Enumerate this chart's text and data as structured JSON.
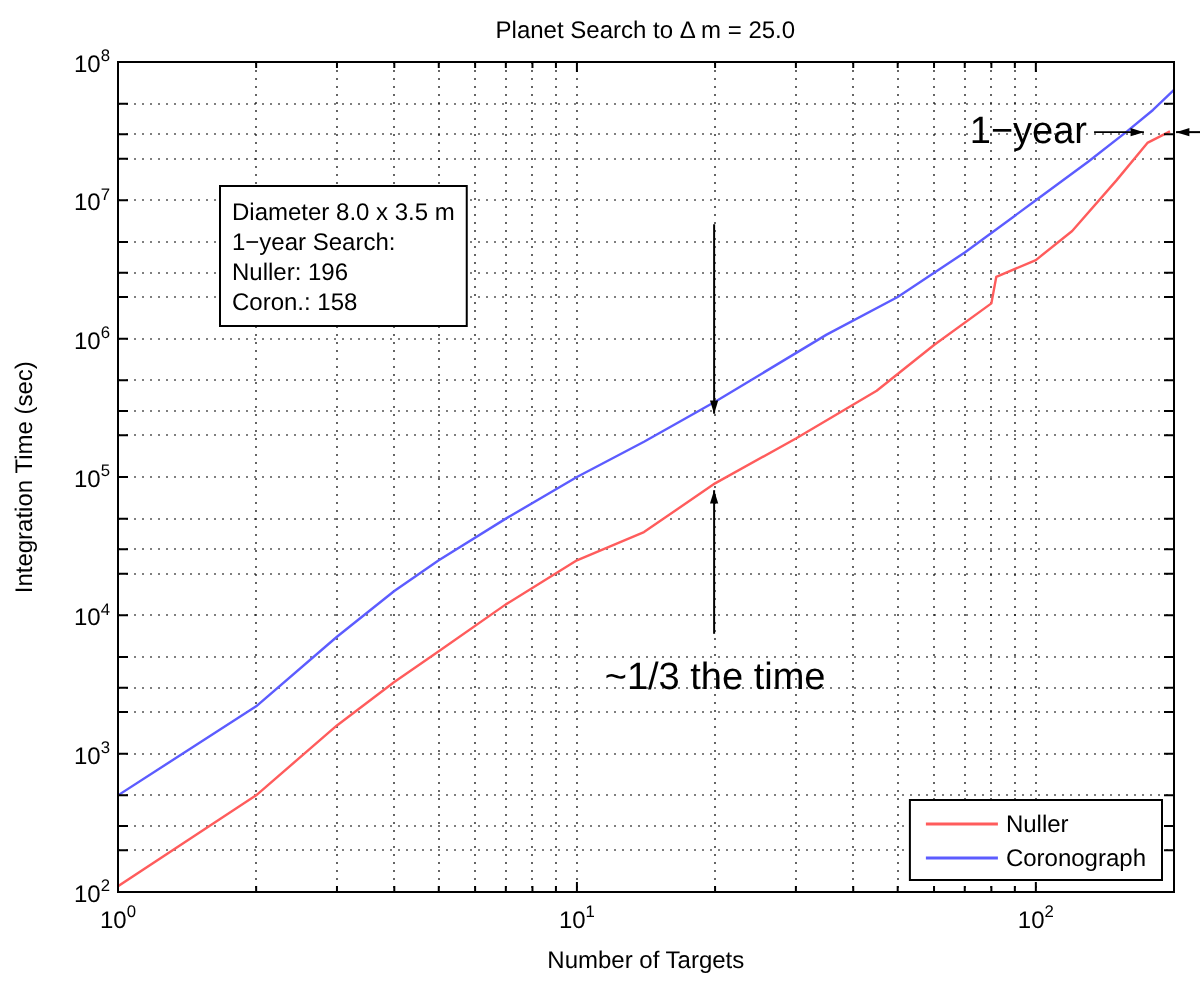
{
  "chart_data": {
    "type": "line",
    "title": "Planet Search to Δ m = 25.0",
    "xlabel": "Number of Targets",
    "ylabel": "Integration Time (sec)",
    "log": "xy",
    "grid": true,
    "legend": "bottom right",
    "marker": "none",
    "line_style": "solid",
    "xlim": [
      1,
      200
    ],
    "ylim": [
      100,
      100000000
    ],
    "xticks": [
      {
        "value": 1,
        "label": "10$^{0}$"
      },
      {
        "value": 2,
        "label": null
      },
      {
        "value": 3,
        "label": null
      },
      {
        "value": 4,
        "label": null
      },
      {
        "value": 5,
        "label": null
      },
      {
        "value": 6,
        "label": null
      },
      {
        "value": 7,
        "label": null
      },
      {
        "value": 8,
        "label": null
      },
      {
        "value": 9,
        "label": null
      },
      {
        "value": 10,
        "label": "10$^{1}$"
      },
      {
        "value": 20,
        "label": null
      },
      {
        "value": 30,
        "label": null
      },
      {
        "value": 40,
        "label": null
      },
      {
        "value": 50,
        "label": null
      },
      {
        "value": 60,
        "label": null
      },
      {
        "value": 70,
        "label": null
      },
      {
        "value": 80,
        "label": null
      },
      {
        "value": 90,
        "label": null
      },
      {
        "value": 100,
        "label": "10$^{2}$"
      }
    ],
    "yticks": [
      {
        "value": 100,
        "label": "10$^{2}$"
      },
      {
        "value": 200,
        "label": null
      },
      {
        "value": 300,
        "label": null
      },
      {
        "value": 500,
        "label": null
      },
      {
        "value": 1000,
        "label": "10$^{3}$"
      },
      {
        "value": 2000,
        "label": null
      },
      {
        "value": 3000,
        "label": null
      },
      {
        "value": 5000,
        "label": null
      },
      {
        "value": 10000,
        "label": "10$^{4}$"
      },
      {
        "value": 20000,
        "label": null
      },
      {
        "value": 30000,
        "label": null
      },
      {
        "value": 50000,
        "label": null
      },
      {
        "value": 100000,
        "label": "10$^{5}$"
      },
      {
        "value": 200000,
        "label": null
      },
      {
        "value": 300000,
        "label": null
      },
      {
        "value": 500000,
        "label": null
      },
      {
        "value": 1000000,
        "label": "10$^{6}$"
      },
      {
        "value": 2000000,
        "label": null
      },
      {
        "value": 3000000,
        "label": null
      },
      {
        "value": 5000000,
        "label": null
      },
      {
        "value": 10000000,
        "label": "10$^{7}$"
      },
      {
        "value": 20000000,
        "label": null
      },
      {
        "value": 30000000,
        "label": null
      },
      {
        "value": 50000000,
        "label": null
      },
      {
        "value": 100000000,
        "label": "10$^{8}$"
      }
    ],
    "series": [
      {
        "name": "Nuller",
        "color": "#ff5c5c",
        "x": [
          1,
          2,
          3,
          4,
          5,
          7,
          10,
          14,
          20,
          30,
          45,
          60,
          80,
          82,
          100,
          120,
          150,
          175,
          196
        ],
        "values": [
          110,
          500,
          1600,
          3300,
          5500,
          12000,
          25000,
          40000,
          90000,
          190000,
          420000,
          900000,
          1800000,
          2800000,
          3700000,
          6000000,
          14000000,
          26000000,
          31500000
        ]
      },
      {
        "name": "Coronograph",
        "color": "#5c5cff",
        "x": [
          1,
          2,
          3,
          4,
          5,
          7,
          10,
          14,
          20,
          35,
          50,
          70,
          100,
          130,
          158,
          180,
          200
        ],
        "values": [
          500,
          2200,
          7000,
          15000,
          25000,
          50000,
          100000,
          180000,
          350000,
          1070000,
          2000000,
          4200000,
          10000000,
          19000000,
          31500000,
          45000000,
          63000000
        ]
      }
    ],
    "annotations": [
      {
        "text": "1−year",
        "x": 158,
        "y": 31500000
      },
      {
        "text": "~1/3 the time",
        "x": 20,
        "y": 90000
      },
      "Diameter 8.0 x 3.5 m\n1−year Search:\nNuller: 196\nCoron.: 158"
    ]
  }
}
